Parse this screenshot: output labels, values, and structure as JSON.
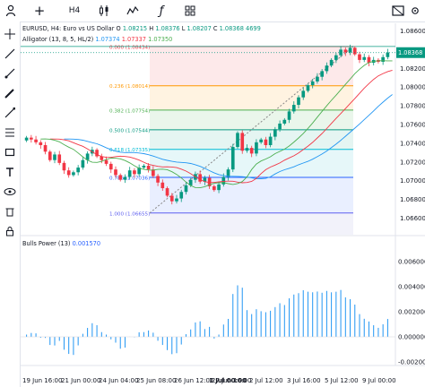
{
  "toolbar": {
    "timeframe": "H4",
    "add_symbol": "+",
    "indicator_glyph": "ƒ"
  },
  "legend": {
    "symbol": "EURUSD, H4: Euro vs US Dollar",
    "o_label": "O",
    "o_value": "1.08215",
    "h_label": "H",
    "h_value": "1.08376",
    "l_label": "L",
    "l_value": "1.08207",
    "c_label": "C",
    "c_value": "1.08368",
    "volume": "4699",
    "alligator_name": "Alligator (13, 8, 5, HL/2)",
    "alligator_values": [
      "1.07374",
      "1.07337",
      "1.07350"
    ]
  },
  "fib_levels": [
    {
      "ratio": "0.000",
      "price": "1.08434"
    },
    {
      "ratio": "0.236",
      "price": "1.08014"
    },
    {
      "ratio": "0.382",
      "price": "1.07754"
    },
    {
      "ratio": "0.500",
      "price": "1.07544"
    },
    {
      "ratio": "0.618",
      "price": "1.07335"
    },
    {
      "ratio": "0.786",
      "price": "1.07036"
    },
    {
      "ratio": "1.000",
      "price": "1.06655"
    }
  ],
  "price_axis": [
    "1.08600",
    "1.08200",
    "1.08000",
    "1.07800",
    "1.07600",
    "1.07400",
    "1.07200",
    "1.07000",
    "1.06800",
    "1.06600"
  ],
  "current_price": "1.08368",
  "bulls_power": {
    "name": "Bulls Power (13)",
    "value": "0.001570"
  },
  "bp_axis": [
    "0.008000",
    "0.006000",
    "0.004000",
    "0.002000",
    "0.000000",
    "-0.002000"
  ],
  "time_axis": [
    {
      "label": "19 Jun 16:00",
      "bold": false
    },
    {
      "label": "21 Jun 00:00",
      "bold": false
    },
    {
      "label": "24 Jun 04:00",
      "bold": false
    },
    {
      "label": "25 Jun 08:00",
      "bold": false
    },
    {
      "label": "26 Jun 12:00",
      "bold": false
    },
    {
      "label": "27 Jun 16:00",
      "bold": false
    },
    {
      "label": "1 Jul 00:00",
      "bold": true
    },
    {
      "label": "2 Jul 12:00",
      "bold": false
    },
    {
      "label": "3 Jul 16:00",
      "bold": false
    },
    {
      "label": "5 Jul 12:00",
      "bold": false
    },
    {
      "label": "9 Jul 00:00",
      "bold": false
    }
  ],
  "colors": {
    "up": "#089981",
    "down": "#f23645",
    "jaw": "#2196f3",
    "teeth": "#f23645",
    "lips": "#4caf50",
    "bp": "#2196f3"
  },
  "icons": [
    "crosshair-icon",
    "trendline-icon",
    "ray-icon",
    "pen-icon",
    "measure-icon",
    "fib-icon",
    "rectangle-icon",
    "text-icon",
    "emoji-icon",
    "eye-icon",
    "trash-icon"
  ]
}
